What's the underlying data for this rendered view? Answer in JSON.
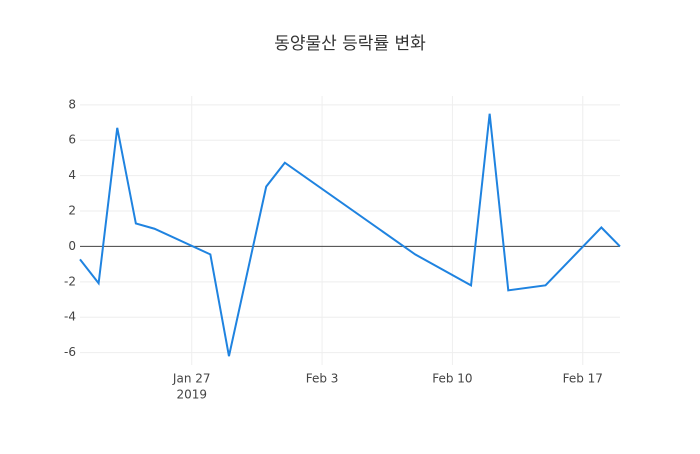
{
  "chart_data": {
    "type": "line",
    "title": "동양물산 등락률 변화",
    "x": [
      "2019-01-21",
      "2019-01-22",
      "2019-01-23",
      "2019-01-24",
      "2019-01-25",
      "2019-01-28",
      "2019-01-29",
      "2019-01-31",
      "2019-02-01",
      "2019-02-08",
      "2019-02-11",
      "2019-02-12",
      "2019-02-13",
      "2019-02-15",
      "2019-02-18",
      "2019-02-19"
    ],
    "series": [
      {
        "color": "#1f83e0",
        "values": [
          -0.73,
          -2.08,
          6.7,
          1.3,
          1.0,
          -0.45,
          -6.2,
          3.38,
          4.73,
          -0.45,
          -2.2,
          7.5,
          -2.48,
          -2.2,
          1.07,
          0
        ]
      }
    ],
    "xlim": [
      "2019-01-21",
      "2019-02-19"
    ],
    "xticks": [
      {
        "value": "2019-01-27",
        "label": "Jan 27"
      },
      {
        "value": "2019-02-03",
        "label": "Feb 3"
      },
      {
        "value": "2019-02-10",
        "label": "Feb 10"
      },
      {
        "value": "2019-02-17",
        "label": "Feb 17"
      }
    ],
    "xtick_year": "2019",
    "ylim": [
      -6.7,
      8.5
    ],
    "yticks": [
      -6,
      -4,
      -2,
      0,
      2,
      4,
      6,
      8
    ],
    "grid": true,
    "zeroline": true
  }
}
